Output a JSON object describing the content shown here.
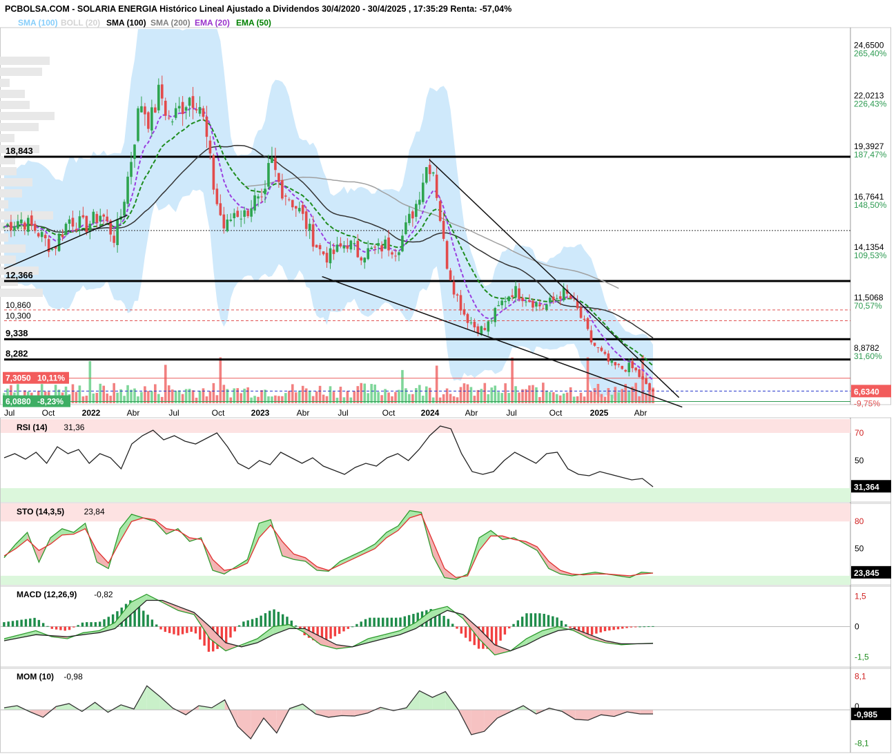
{
  "header": {
    "title": "PCBOLSA.COM - SOLARIA ENERGIA Histórico Lineal Ajustado a Dividendos 30/4/2020 - 30/4/2025 , 17:35:29 Renta: -57,04%",
    "indicators": [
      {
        "label": "SMA (100)",
        "color": "#87cefa"
      },
      {
        "label": "BOLL (20)",
        "color": "#d3d3d3"
      },
      {
        "label": "SMA (100)",
        "color": "#000000"
      },
      {
        "label": "SMA (200)",
        "color": "#808080"
      },
      {
        "label": "EMA (20)",
        "color": "#9932cc"
      },
      {
        "label": "EMA (50)",
        "color": "#008000"
      }
    ]
  },
  "chart_data": [
    {
      "type": "candlestick",
      "name": "price",
      "ylim": [
        6.0,
        25.5
      ],
      "x_ticks": [
        "Jul",
        "Oct",
        "2022",
        "Abr",
        "Jul",
        "Oct",
        "2023",
        "Abr",
        "Jul",
        "Oct",
        "2024",
        "Abr",
        "Jul",
        "Oct",
        "2025",
        "Abr"
      ],
      "y_ticks": [
        {
          "value": 24.65,
          "label": "24,6500",
          "pct": "265,40%"
        },
        {
          "value": 22.0213,
          "label": "22,0213",
          "pct": "226,43%"
        },
        {
          "value": 19.3927,
          "label": "19,3927",
          "pct": "187,47%"
        },
        {
          "value": 16.7641,
          "label": "16,7641",
          "pct": "148,50%"
        },
        {
          "value": 14.1354,
          "label": "14,1354",
          "pct": "109,53%"
        },
        {
          "value": 11.5068,
          "label": "11,5068",
          "pct": "70,57%"
        },
        {
          "value": 8.8782,
          "label": "8,8782",
          "pct": "31,60%"
        }
      ],
      "current": {
        "value": 6.634,
        "label": "6,6340",
        "pct": "-9,75%"
      },
      "support_resistance": [
        {
          "value": 18.843,
          "label": "18,843"
        },
        {
          "value": 12.366,
          "label": "12,366"
        },
        {
          "value": 9.338,
          "label": "9,338"
        },
        {
          "value": 8.282,
          "label": "8,282"
        }
      ],
      "dashed_levels": [
        {
          "value": 10.86,
          "label": "10,860"
        },
        {
          "value": 10.3,
          "label": "10,300"
        }
      ],
      "high_marker": {
        "value": 7.305,
        "label": "7,3050",
        "pct": "10,11%"
      },
      "low_marker": {
        "value": 6.088,
        "label": "6,0880",
        "pct": "-8,23%"
      },
      "close_path": [
        [
          0.0,
          15.2
        ],
        [
          0.025,
          15.6
        ],
        [
          0.05,
          15.0
        ],
        [
          0.075,
          14.0
        ],
        [
          0.1,
          15.6
        ],
        [
          0.125,
          15.2
        ],
        [
          0.15,
          15.9
        ],
        [
          0.17,
          14.6
        ],
        [
          0.18,
          15.8
        ],
        [
          0.195,
          18.6
        ],
        [
          0.21,
          21.8
        ],
        [
          0.225,
          20.6
        ],
        [
          0.24,
          22.3
        ],
        [
          0.255,
          20.6
        ],
        [
          0.27,
          21.3
        ],
        [
          0.285,
          22.0
        ],
        [
          0.3,
          21.8
        ],
        [
          0.31,
          20.2
        ],
        [
          0.325,
          16.8
        ],
        [
          0.34,
          15.0
        ],
        [
          0.355,
          16.0
        ],
        [
          0.37,
          15.8
        ],
        [
          0.385,
          16.6
        ],
        [
          0.4,
          16.2
        ],
        [
          0.41,
          18.8
        ],
        [
          0.425,
          17.3
        ],
        [
          0.44,
          16.7
        ],
        [
          0.455,
          16.0
        ],
        [
          0.47,
          15.0
        ],
        [
          0.485,
          14.0
        ],
        [
          0.5,
          13.6
        ],
        [
          0.515,
          14.0
        ],
        [
          0.53,
          14.4
        ],
        [
          0.545,
          13.8
        ],
        [
          0.56,
          13.9
        ],
        [
          0.575,
          14.0
        ],
        [
          0.59,
          14.3
        ],
        [
          0.605,
          14.0
        ],
        [
          0.62,
          15.2
        ],
        [
          0.635,
          16.4
        ],
        [
          0.65,
          18.3
        ],
        [
          0.66,
          18.5
        ],
        [
          0.67,
          16.2
        ],
        [
          0.68,
          13.6
        ],
        [
          0.695,
          11.8
        ],
        [
          0.71,
          10.6
        ],
        [
          0.725,
          10.0
        ],
        [
          0.74,
          9.8
        ],
        [
          0.755,
          10.6
        ],
        [
          0.77,
          11.4
        ],
        [
          0.785,
          11.9
        ],
        [
          0.8,
          11.6
        ],
        [
          0.815,
          11.3
        ],
        [
          0.83,
          11.0
        ],
        [
          0.845,
          11.3
        ],
        [
          0.86,
          11.8
        ],
        [
          0.875,
          11.4
        ],
        [
          0.89,
          10.4
        ],
        [
          0.905,
          9.2
        ],
        [
          0.92,
          8.6
        ],
        [
          0.935,
          8.0
        ],
        [
          0.95,
          7.8
        ],
        [
          0.965,
          7.9
        ],
        [
          0.975,
          7.6
        ],
        [
          0.985,
          7.1
        ],
        [
          0.993,
          6.7
        ],
        [
          1.0,
          6.634
        ]
      ]
    },
    {
      "type": "line",
      "name": "RSI (14)",
      "value_label": "31,36",
      "current_label": "31,364",
      "y_ticks": [
        "70",
        "50"
      ],
      "ylim": [
        20,
        80
      ],
      "values": [
        52,
        55,
        51,
        56,
        48,
        60,
        55,
        58,
        48,
        55,
        52,
        44,
        62,
        68,
        72,
        65,
        68,
        64,
        62,
        66,
        70,
        60,
        48,
        44,
        50,
        47,
        56,
        52,
        48,
        52,
        46,
        43,
        40,
        45,
        48,
        46,
        52,
        55,
        50,
        58,
        68,
        75,
        73,
        55,
        42,
        40,
        42,
        50,
        56,
        52,
        48,
        55,
        56,
        44,
        40,
        39,
        42,
        40,
        38,
        36,
        37,
        31
      ]
    },
    {
      "type": "line",
      "name": "STO (14,3,5)",
      "value_label": "23,84",
      "current_label": "23,845",
      "y_ticks": [
        "80",
        "50"
      ],
      "ylim": [
        10,
        100
      ],
      "series": [
        {
          "name": "K",
          "values": [
            40,
            55,
            68,
            35,
            62,
            72,
            68,
            78,
            35,
            28,
            72,
            88,
            84,
            80,
            66,
            72,
            58,
            62,
            26,
            22,
            30,
            38,
            78,
            82,
            42,
            38,
            36,
            26,
            25,
            36,
            42,
            48,
            55,
            68,
            75,
            92,
            90,
            42,
            18,
            16,
            22,
            62,
            70,
            60,
            62,
            55,
            48,
            28,
            22,
            20,
            22,
            24,
            22,
            20,
            18,
            24,
            23
          ]
        },
        {
          "name": "D",
          "values": [
            42,
            50,
            60,
            48,
            55,
            65,
            66,
            72,
            48,
            34,
            58,
            80,
            84,
            82,
            72,
            70,
            62,
            60,
            38,
            26,
            28,
            34,
            62,
            76,
            58,
            44,
            40,
            30,
            26,
            32,
            38,
            44,
            50,
            62,
            70,
            84,
            88,
            58,
            28,
            18,
            20,
            48,
            64,
            64,
            60,
            58,
            52,
            36,
            26,
            22,
            21,
            22,
            22,
            21,
            20,
            22,
            23
          ]
        }
      ]
    },
    {
      "type": "line",
      "name": "MACD (12,26,9)",
      "value_label": "-0,82",
      "y_ticks": [
        "1,5",
        "0",
        "-1,5"
      ],
      "ylim": [
        -2.0,
        2.0
      ],
      "series": [
        {
          "name": "macd",
          "values": [
            -0.6,
            -0.4,
            -0.2,
            -0.5,
            -0.6,
            -0.3,
            -0.2,
            0.2,
            1.2,
            1.6,
            1.2,
            0.8,
            0.6,
            -0.6,
            -1.2,
            -0.9,
            -0.6,
            0.0,
            0.1,
            -0.3,
            -0.9,
            -1.1,
            -1.0,
            -0.6,
            -0.4,
            -0.2,
            0.2,
            0.8,
            1.0,
            0.4,
            -0.6,
            -1.4,
            -1.2,
            -0.6,
            -0.2,
            0.0,
            -0.2,
            -0.6,
            -0.8,
            -0.9,
            -0.85,
            -0.82
          ]
        },
        {
          "name": "signal",
          "values": [
            -0.7,
            -0.55,
            -0.4,
            -0.45,
            -0.5,
            -0.4,
            -0.3,
            -0.1,
            0.6,
            1.3,
            1.3,
            1.0,
            0.7,
            0.0,
            -0.8,
            -1.0,
            -0.8,
            -0.4,
            -0.1,
            -0.1,
            -0.5,
            -0.9,
            -1.0,
            -0.8,
            -0.6,
            -0.4,
            -0.1,
            0.4,
            0.8,
            0.6,
            -0.1,
            -0.9,
            -1.2,
            -0.9,
            -0.5,
            -0.2,
            -0.1,
            -0.4,
            -0.7,
            -0.85,
            -0.85,
            -0.83
          ]
        }
      ]
    },
    {
      "type": "line",
      "name": "MOM (10)",
      "value_label": "-0,98",
      "current_label": "-0,985",
      "y_ticks": [
        "8,1",
        "0",
        "-8,1"
      ],
      "ylim": [
        -10,
        10
      ],
      "values": [
        0.5,
        1.0,
        -0.5,
        -1.8,
        0.8,
        1.5,
        -0.4,
        1.8,
        -0.6,
        1.2,
        0.2,
        5.8,
        3.2,
        0.4,
        -1.2,
        1.0,
        0.5,
        2.4,
        -4.0,
        -7.0,
        -2.0,
        -5.6,
        0.3,
        1.4,
        -1.0,
        -1.8,
        -1.4,
        -1.5,
        -0.8,
        0.6,
        -0.2,
        0.5,
        4.6,
        3.0,
        4.4,
        0.0,
        -6.0,
        -5.2,
        -2.0,
        -0.5,
        1.0,
        -1.0,
        0.4,
        -0.4,
        -2.3,
        -2.5,
        -1.2,
        -1.6,
        -0.5,
        -1.0,
        -1.0
      ]
    }
  ]
}
